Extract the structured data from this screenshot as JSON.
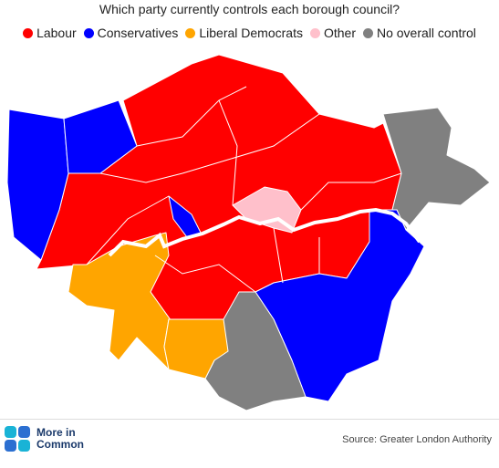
{
  "title": "Which party currently controls each borough council?",
  "legend": [
    {
      "name": "Labour",
      "color": "#ff0000"
    },
    {
      "name": "Conservatives",
      "color": "#0000ff"
    },
    {
      "name": "Liberal Democrats",
      "color": "#ffa500"
    },
    {
      "name": "Other",
      "color": "#ffc0cb"
    },
    {
      "name": "No overall control",
      "color": "#808080"
    }
  ],
  "logo": [
    "More in",
    "Common"
  ],
  "source": "Source: Greater London Authority"
}
